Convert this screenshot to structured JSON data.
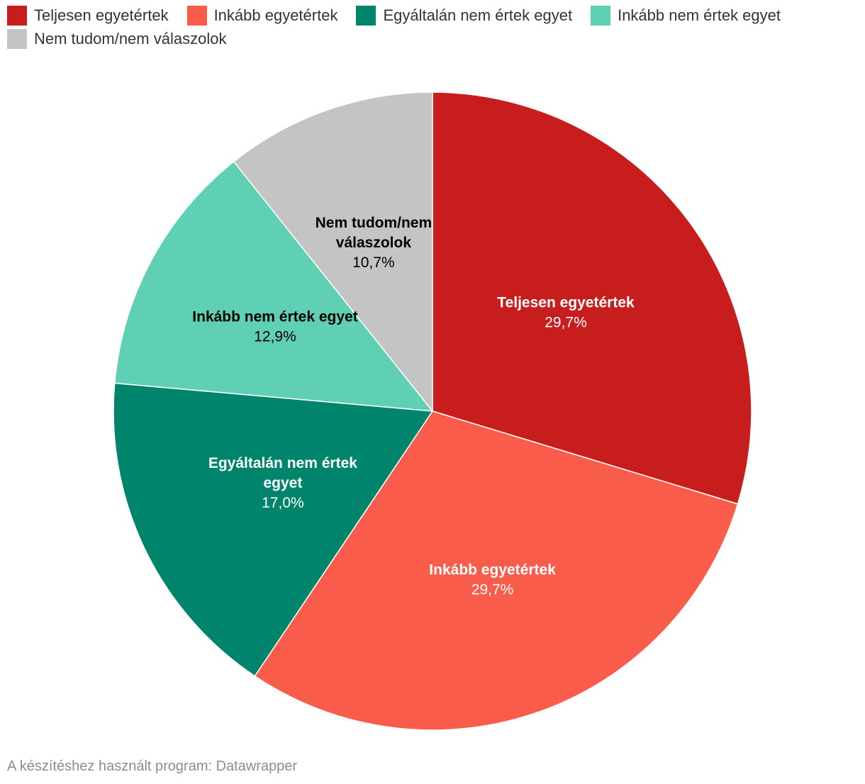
{
  "chart_data": {
    "type": "pie",
    "title": "",
    "categories": [
      "Teljesen egyetértek",
      "Inkább egyetértek",
      "Egyáltalán nem értek egyet",
      "Inkább nem értek egyet",
      "Nem tudom/nem válaszolok"
    ],
    "values": [
      29.7,
      29.7,
      17.0,
      12.9,
      10.7
    ],
    "value_labels": [
      "29,7%",
      "29,7%",
      "17,0%",
      "12,9%",
      "10,7%"
    ],
    "colors": [
      "#c71e1d",
      "#fa5c4b",
      "#00846b",
      "#60d0b5",
      "#c4c4c4"
    ],
    "label_colors": [
      "#ffffff",
      "#ffffff",
      "#ffffff",
      "#000000",
      "#000000"
    ],
    "start_angle": "12 o'clock, clockwise",
    "legend_placement": "top"
  },
  "footer": {
    "credit": "A készítéshez használt program: Datawrapper"
  }
}
